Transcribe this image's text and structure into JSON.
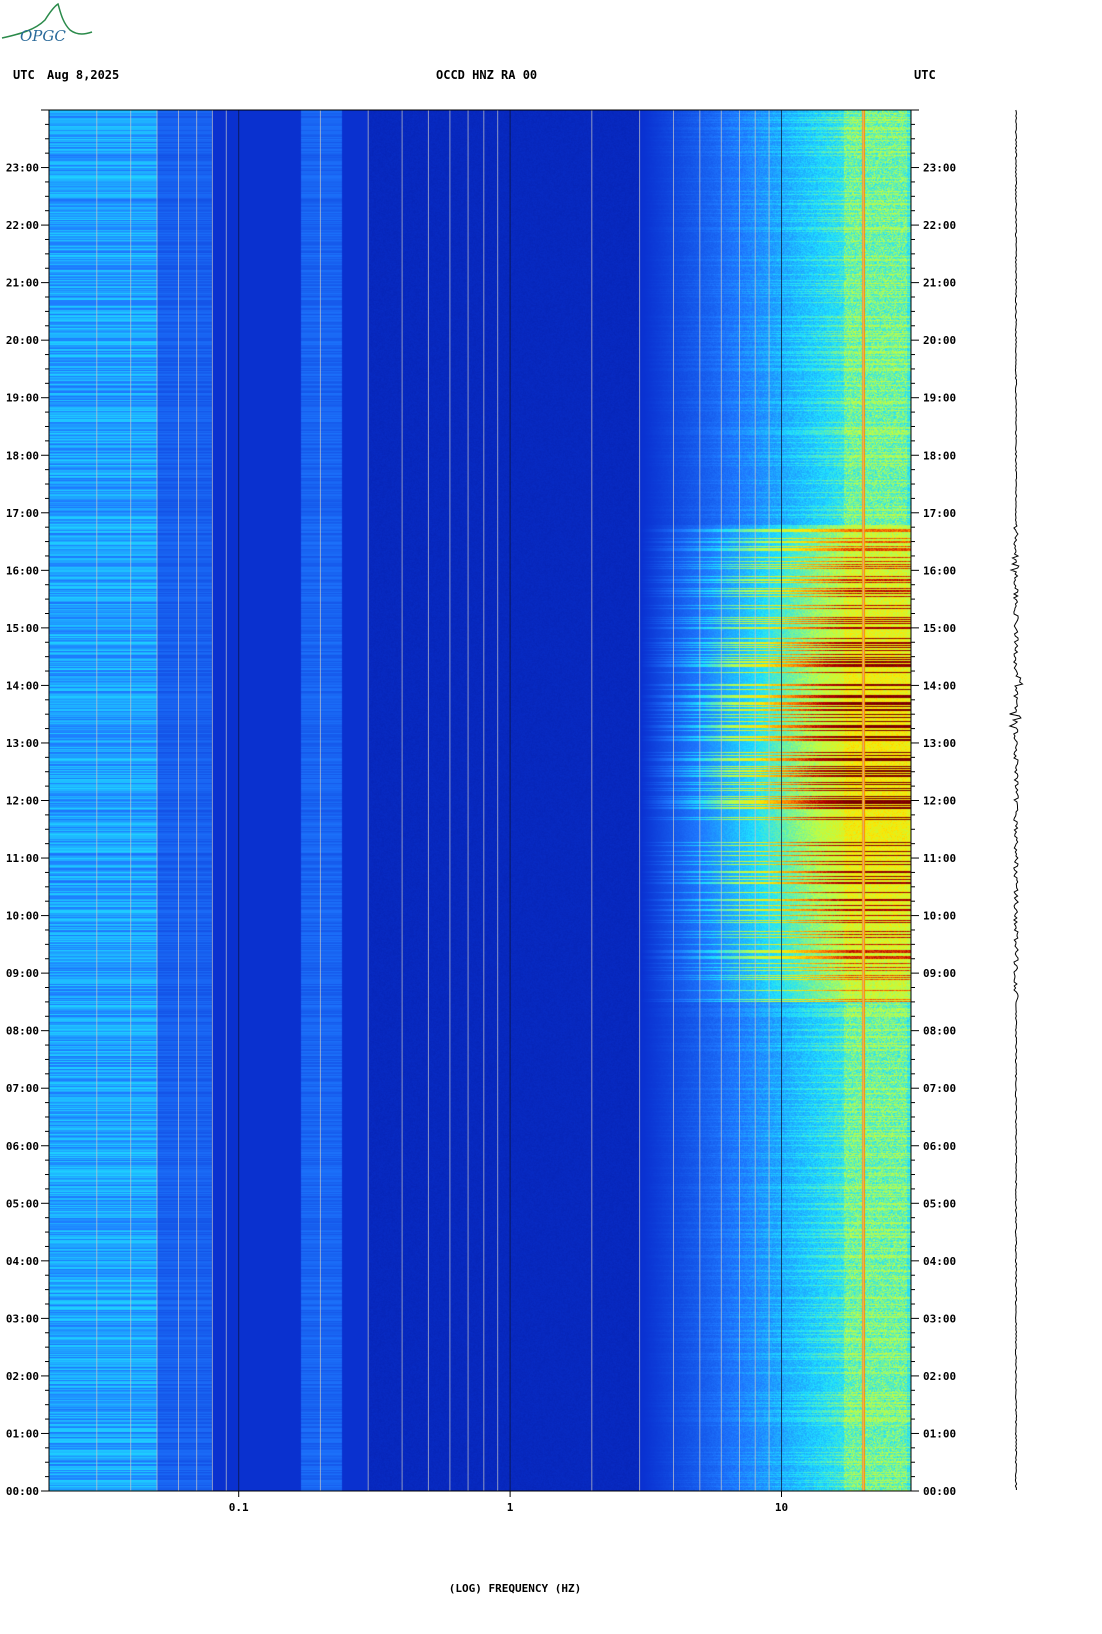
{
  "logo_text": "OPGC",
  "header": {
    "left_tz": "UTC",
    "date": "Aug 8,2025",
    "station": "OCCD HNZ RA 00",
    "right_tz": "UTC"
  },
  "chart_data": {
    "type": "heatmap",
    "title": "OCCD HNZ RA 00",
    "xlabel": "(LOG) FREQUENCY (HZ)",
    "xscale": "log",
    "xlim": [
      0.02,
      30
    ],
    "x_ticks": [
      {
        "value": 0.1,
        "label": "0.1"
      },
      {
        "value": 1,
        "label": "1"
      },
      {
        "value": 10,
        "label": "10"
      }
    ],
    "ylim_hours": [
      0,
      24
    ],
    "y_ticks": [
      "00:00",
      "01:00",
      "02:00",
      "03:00",
      "04:00",
      "05:00",
      "06:00",
      "07:00",
      "08:00",
      "09:00",
      "10:00",
      "11:00",
      "12:00",
      "13:00",
      "14:00",
      "15:00",
      "16:00",
      "17:00",
      "18:00",
      "19:00",
      "20:00",
      "21:00",
      "22:00",
      "23:00"
    ],
    "colormap": [
      "#00108c",
      "#0a32d2",
      "#1e78ff",
      "#1ee1ff",
      "#b4ff50",
      "#ffe600",
      "#ff7800",
      "#b40000",
      "#780000"
    ],
    "grid": true,
    "active_period_hours": [
      8.5,
      16.8
    ],
    "persistent_line_hz": 20,
    "seismogram_events_hours": [
      16.1,
      14.1,
      13.4
    ]
  }
}
